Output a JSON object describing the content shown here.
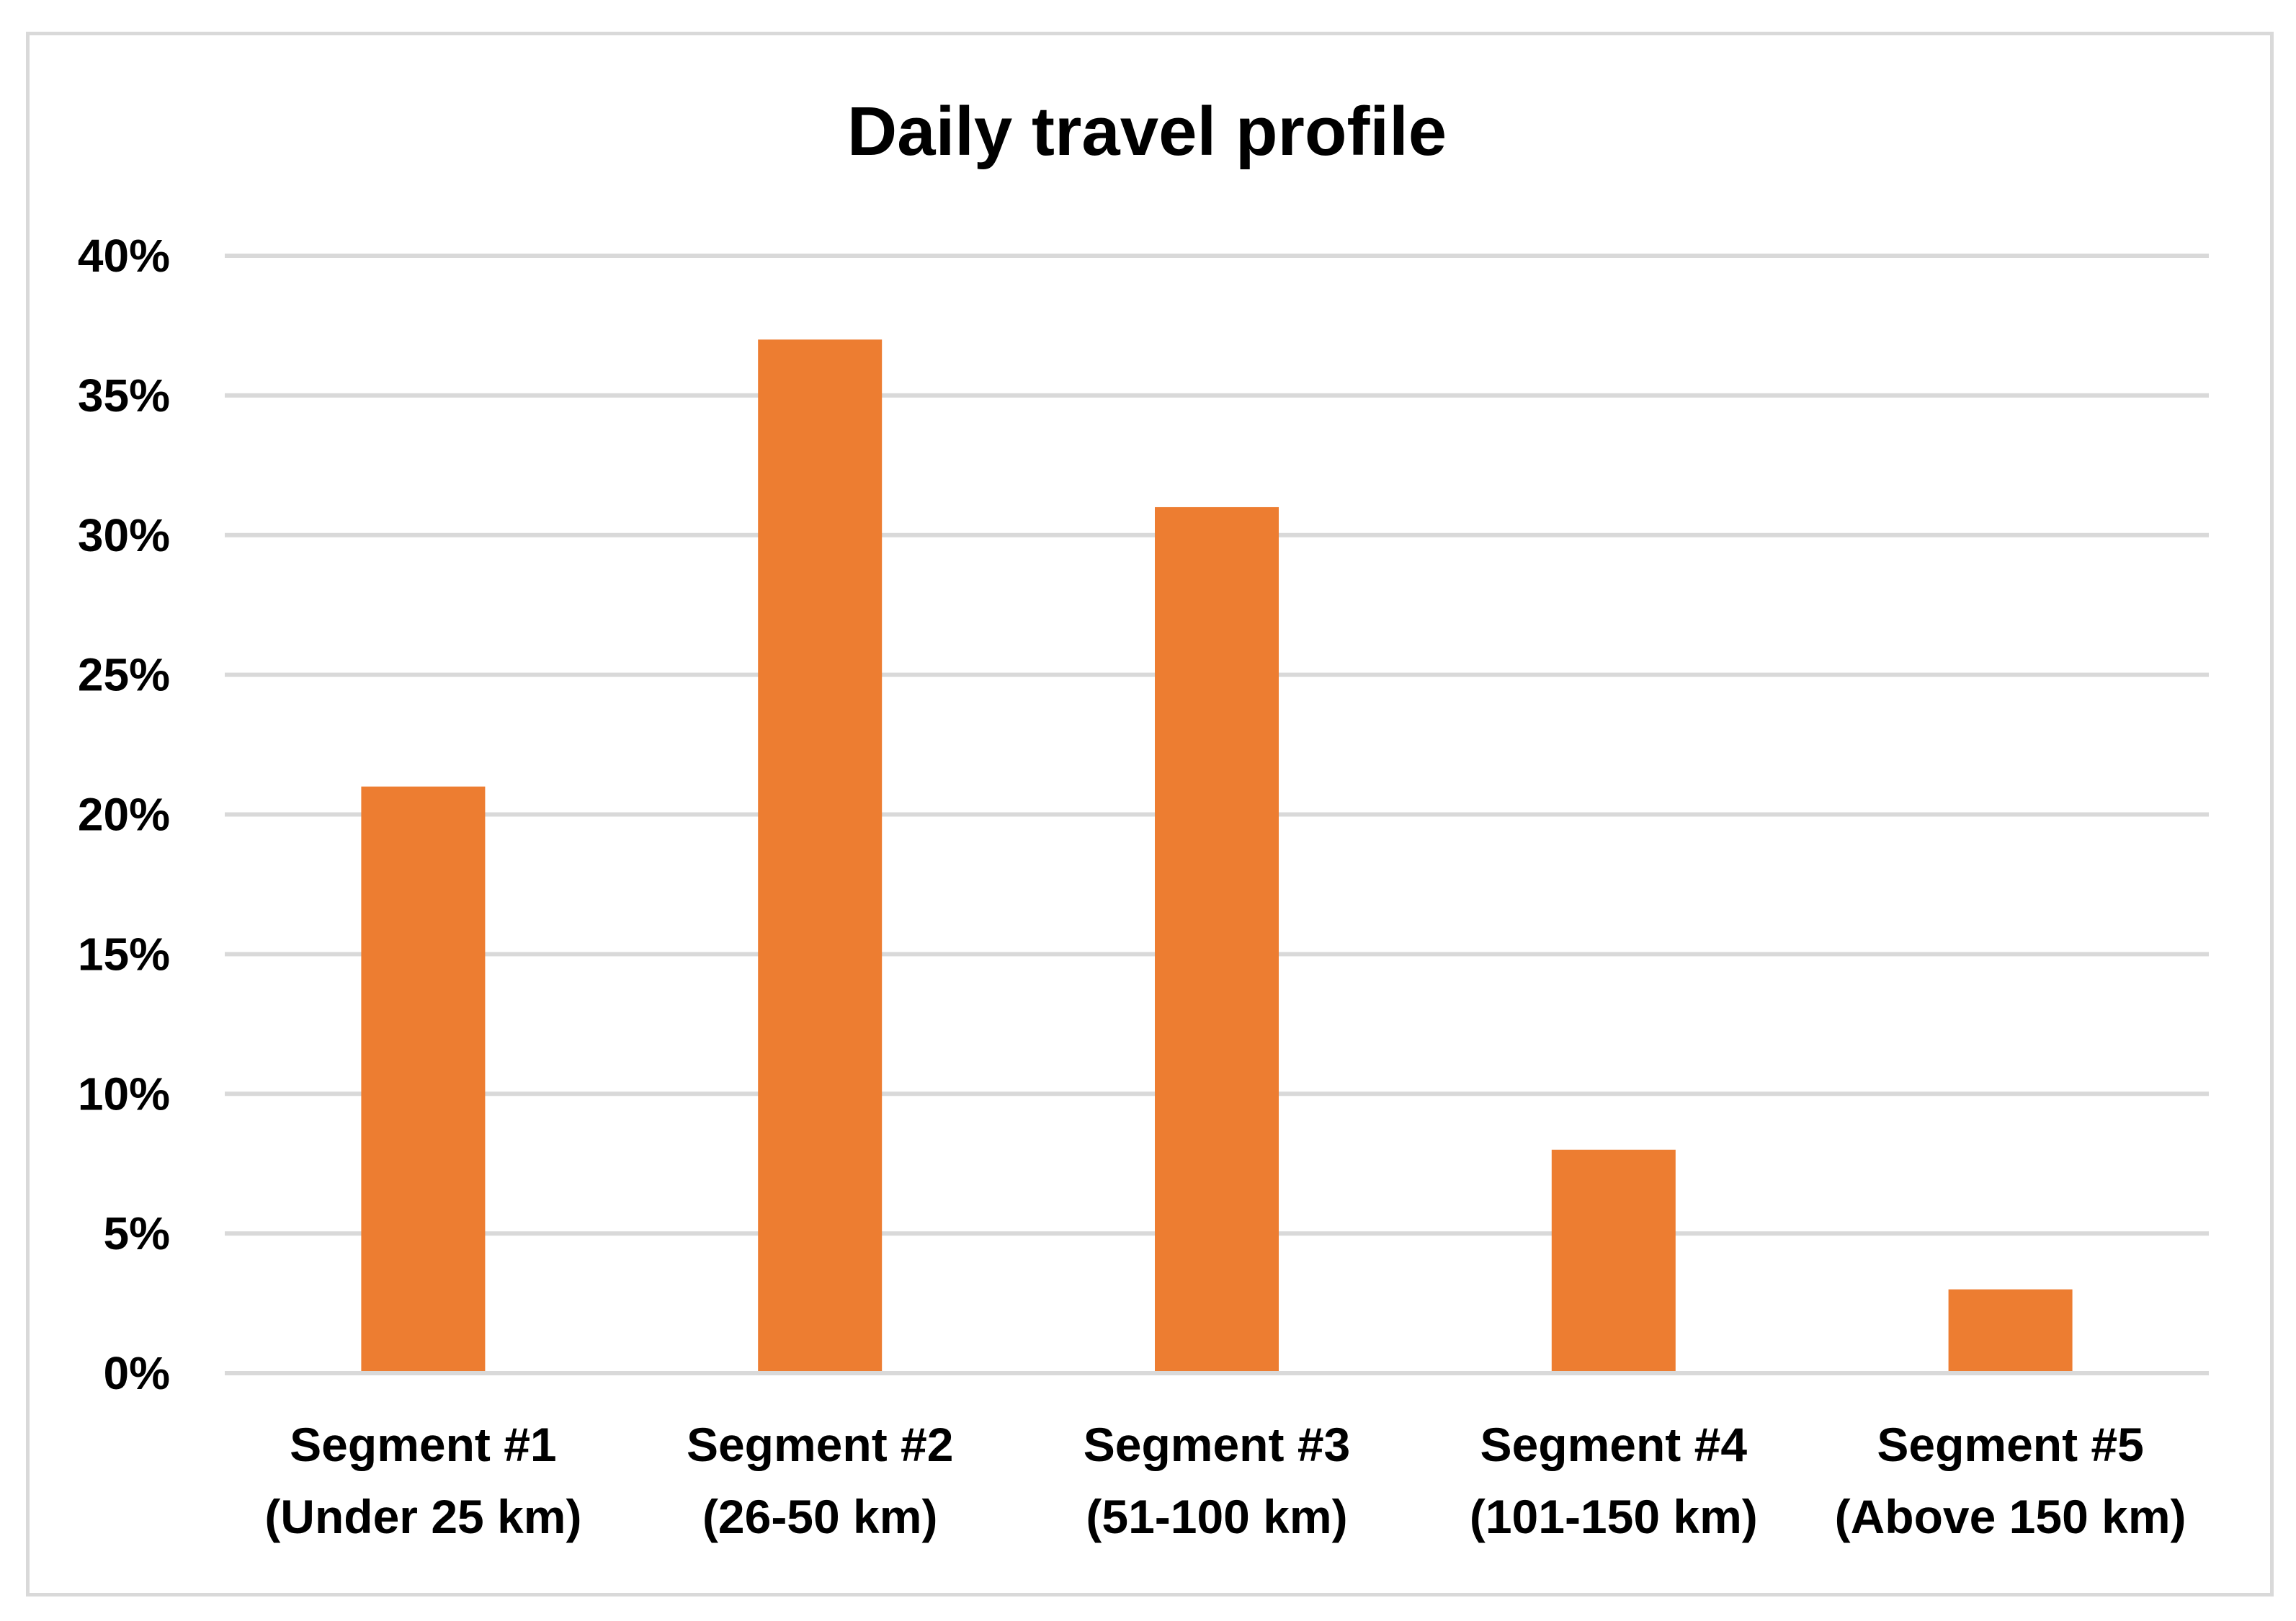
{
  "chart_data": {
    "type": "bar",
    "title": "Daily travel profile",
    "xlabel": "",
    "ylabel": "",
    "categories": [
      [
        "Segment #1",
        "(Under 25 km)"
      ],
      [
        "Segment #2",
        "(26-50 km)"
      ],
      [
        "Segment #3",
        "(51-100 km)"
      ],
      [
        "Segment #4",
        "(101-150 km)"
      ],
      [
        "Segment #5",
        "(Above 150 km)"
      ]
    ],
    "values": [
      21,
      37,
      31,
      8,
      3
    ],
    "ylim": [
      0,
      40
    ],
    "yticks": [
      0,
      5,
      10,
      15,
      20,
      25,
      30,
      35,
      40
    ],
    "ytick_labels": [
      "0%",
      "5%",
      "10%",
      "15%",
      "20%",
      "25%",
      "30%",
      "35%",
      "40%"
    ],
    "grid": true,
    "legend": "none",
    "bar_color": "#ED7D31",
    "grid_color": "#D9D9D9"
  }
}
